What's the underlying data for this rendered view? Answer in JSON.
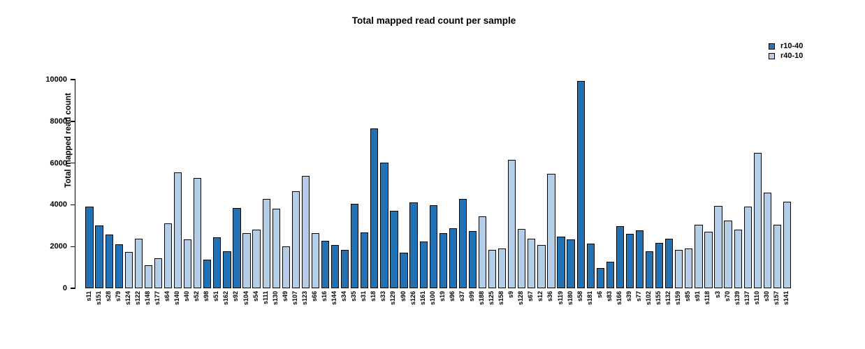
{
  "chart_data": {
    "type": "bar",
    "title": "Total mapped read count per sample",
    "ylabel": "Total mapped read count",
    "xlabel": "",
    "ylim": [
      0,
      10000
    ],
    "yticks": [
      0,
      2000,
      4000,
      6000,
      8000,
      10000
    ],
    "grid": false,
    "legend": {
      "position": "top-right",
      "entries": [
        {
          "label": "r10-40",
          "color": "#2171b5"
        },
        {
          "label": "r40-10",
          "color": "#b4cee8"
        }
      ]
    },
    "bars": [
      {
        "sample": "s11",
        "value": 3900,
        "group": "r10-40"
      },
      {
        "sample": "s151",
        "value": 3000,
        "group": "r10-40"
      },
      {
        "sample": "s28",
        "value": 2580,
        "group": "r10-40"
      },
      {
        "sample": "s79",
        "value": 2100,
        "group": "r10-40"
      },
      {
        "sample": "s124",
        "value": 1740,
        "group": "r40-10"
      },
      {
        "sample": "s122",
        "value": 2390,
        "group": "r40-10"
      },
      {
        "sample": "s148",
        "value": 1100,
        "group": "r40-10"
      },
      {
        "sample": "s177",
        "value": 1440,
        "group": "r40-10"
      },
      {
        "sample": "s64",
        "value": 3100,
        "group": "r40-10"
      },
      {
        "sample": "s140",
        "value": 5550,
        "group": "r40-10"
      },
      {
        "sample": "s40",
        "value": 2350,
        "group": "r40-10"
      },
      {
        "sample": "s52",
        "value": 5300,
        "group": "r40-10"
      },
      {
        "sample": "s98",
        "value": 1370,
        "group": "r10-40"
      },
      {
        "sample": "s51",
        "value": 2440,
        "group": "r10-40"
      },
      {
        "sample": "s162",
        "value": 1770,
        "group": "r10-40"
      },
      {
        "sample": "s92",
        "value": 3850,
        "group": "r10-40"
      },
      {
        "sample": "s104",
        "value": 2650,
        "group": "r40-10"
      },
      {
        "sample": "s54",
        "value": 2820,
        "group": "r40-10"
      },
      {
        "sample": "s111",
        "value": 4280,
        "group": "r40-10"
      },
      {
        "sample": "s130",
        "value": 3820,
        "group": "r40-10"
      },
      {
        "sample": "s49",
        "value": 2010,
        "group": "r40-10"
      },
      {
        "sample": "s107",
        "value": 4650,
        "group": "r40-10"
      },
      {
        "sample": "s123",
        "value": 5390,
        "group": "r40-10"
      },
      {
        "sample": "s66",
        "value": 2640,
        "group": "r40-10"
      },
      {
        "sample": "s16",
        "value": 2270,
        "group": "r10-40"
      },
      {
        "sample": "s144",
        "value": 2080,
        "group": "r10-40"
      },
      {
        "sample": "s34",
        "value": 1830,
        "group": "r10-40"
      },
      {
        "sample": "s35",
        "value": 4060,
        "group": "r10-40"
      },
      {
        "sample": "s31",
        "value": 2660,
        "group": "r10-40"
      },
      {
        "sample": "s18",
        "value": 7650,
        "group": "r10-40"
      },
      {
        "sample": "s33",
        "value": 6030,
        "group": "r10-40"
      },
      {
        "sample": "s129",
        "value": 3710,
        "group": "r10-40"
      },
      {
        "sample": "s90",
        "value": 1700,
        "group": "r10-40"
      },
      {
        "sample": "s126",
        "value": 4100,
        "group": "r10-40"
      },
      {
        "sample": "s161",
        "value": 2240,
        "group": "r10-40"
      },
      {
        "sample": "s100",
        "value": 3980,
        "group": "r10-40"
      },
      {
        "sample": "s19",
        "value": 2640,
        "group": "r10-40"
      },
      {
        "sample": "s96",
        "value": 2860,
        "group": "r10-40"
      },
      {
        "sample": "s37",
        "value": 4280,
        "group": "r10-40"
      },
      {
        "sample": "s99",
        "value": 2740,
        "group": "r10-40"
      },
      {
        "sample": "s188",
        "value": 3440,
        "group": "r40-10"
      },
      {
        "sample": "s125",
        "value": 1830,
        "group": "r40-10"
      },
      {
        "sample": "s158",
        "value": 1910,
        "group": "r40-10"
      },
      {
        "sample": "s9",
        "value": 6150,
        "group": "r40-10"
      },
      {
        "sample": "s128",
        "value": 2840,
        "group": "r40-10"
      },
      {
        "sample": "s67",
        "value": 2370,
        "group": "r40-10"
      },
      {
        "sample": "s12",
        "value": 2090,
        "group": "r40-10"
      },
      {
        "sample": "s36",
        "value": 5480,
        "group": "r40-10"
      },
      {
        "sample": "s119",
        "value": 2470,
        "group": "r10-40"
      },
      {
        "sample": "s180",
        "value": 2330,
        "group": "r10-40"
      },
      {
        "sample": "s58",
        "value": 9930,
        "group": "r10-40"
      },
      {
        "sample": "s181",
        "value": 2130,
        "group": "r10-40"
      },
      {
        "sample": "s6",
        "value": 980,
        "group": "r10-40"
      },
      {
        "sample": "s83",
        "value": 1270,
        "group": "r10-40"
      },
      {
        "sample": "s166",
        "value": 2970,
        "group": "r10-40"
      },
      {
        "sample": "s39",
        "value": 2600,
        "group": "r10-40"
      },
      {
        "sample": "s77",
        "value": 2770,
        "group": "r10-40"
      },
      {
        "sample": "s102",
        "value": 1770,
        "group": "r10-40"
      },
      {
        "sample": "s155",
        "value": 2180,
        "group": "r10-40"
      },
      {
        "sample": "s132",
        "value": 2390,
        "group": "r10-40"
      },
      {
        "sample": "s159",
        "value": 1830,
        "group": "r40-10"
      },
      {
        "sample": "s85",
        "value": 1920,
        "group": "r40-10"
      },
      {
        "sample": "s91",
        "value": 3030,
        "group": "r40-10"
      },
      {
        "sample": "s118",
        "value": 2700,
        "group": "r40-10"
      },
      {
        "sample": "s3",
        "value": 3950,
        "group": "r40-10"
      },
      {
        "sample": "s70",
        "value": 3250,
        "group": "r40-10"
      },
      {
        "sample": "s139",
        "value": 2800,
        "group": "r40-10"
      },
      {
        "sample": "s137",
        "value": 3920,
        "group": "r40-10"
      },
      {
        "sample": "s110",
        "value": 6490,
        "group": "r40-10"
      },
      {
        "sample": "s30",
        "value": 4590,
        "group": "r40-10"
      },
      {
        "sample": "s157",
        "value": 3050,
        "group": "r40-10"
      },
      {
        "sample": "s141",
        "value": 4150,
        "group": "r40-10"
      }
    ]
  }
}
